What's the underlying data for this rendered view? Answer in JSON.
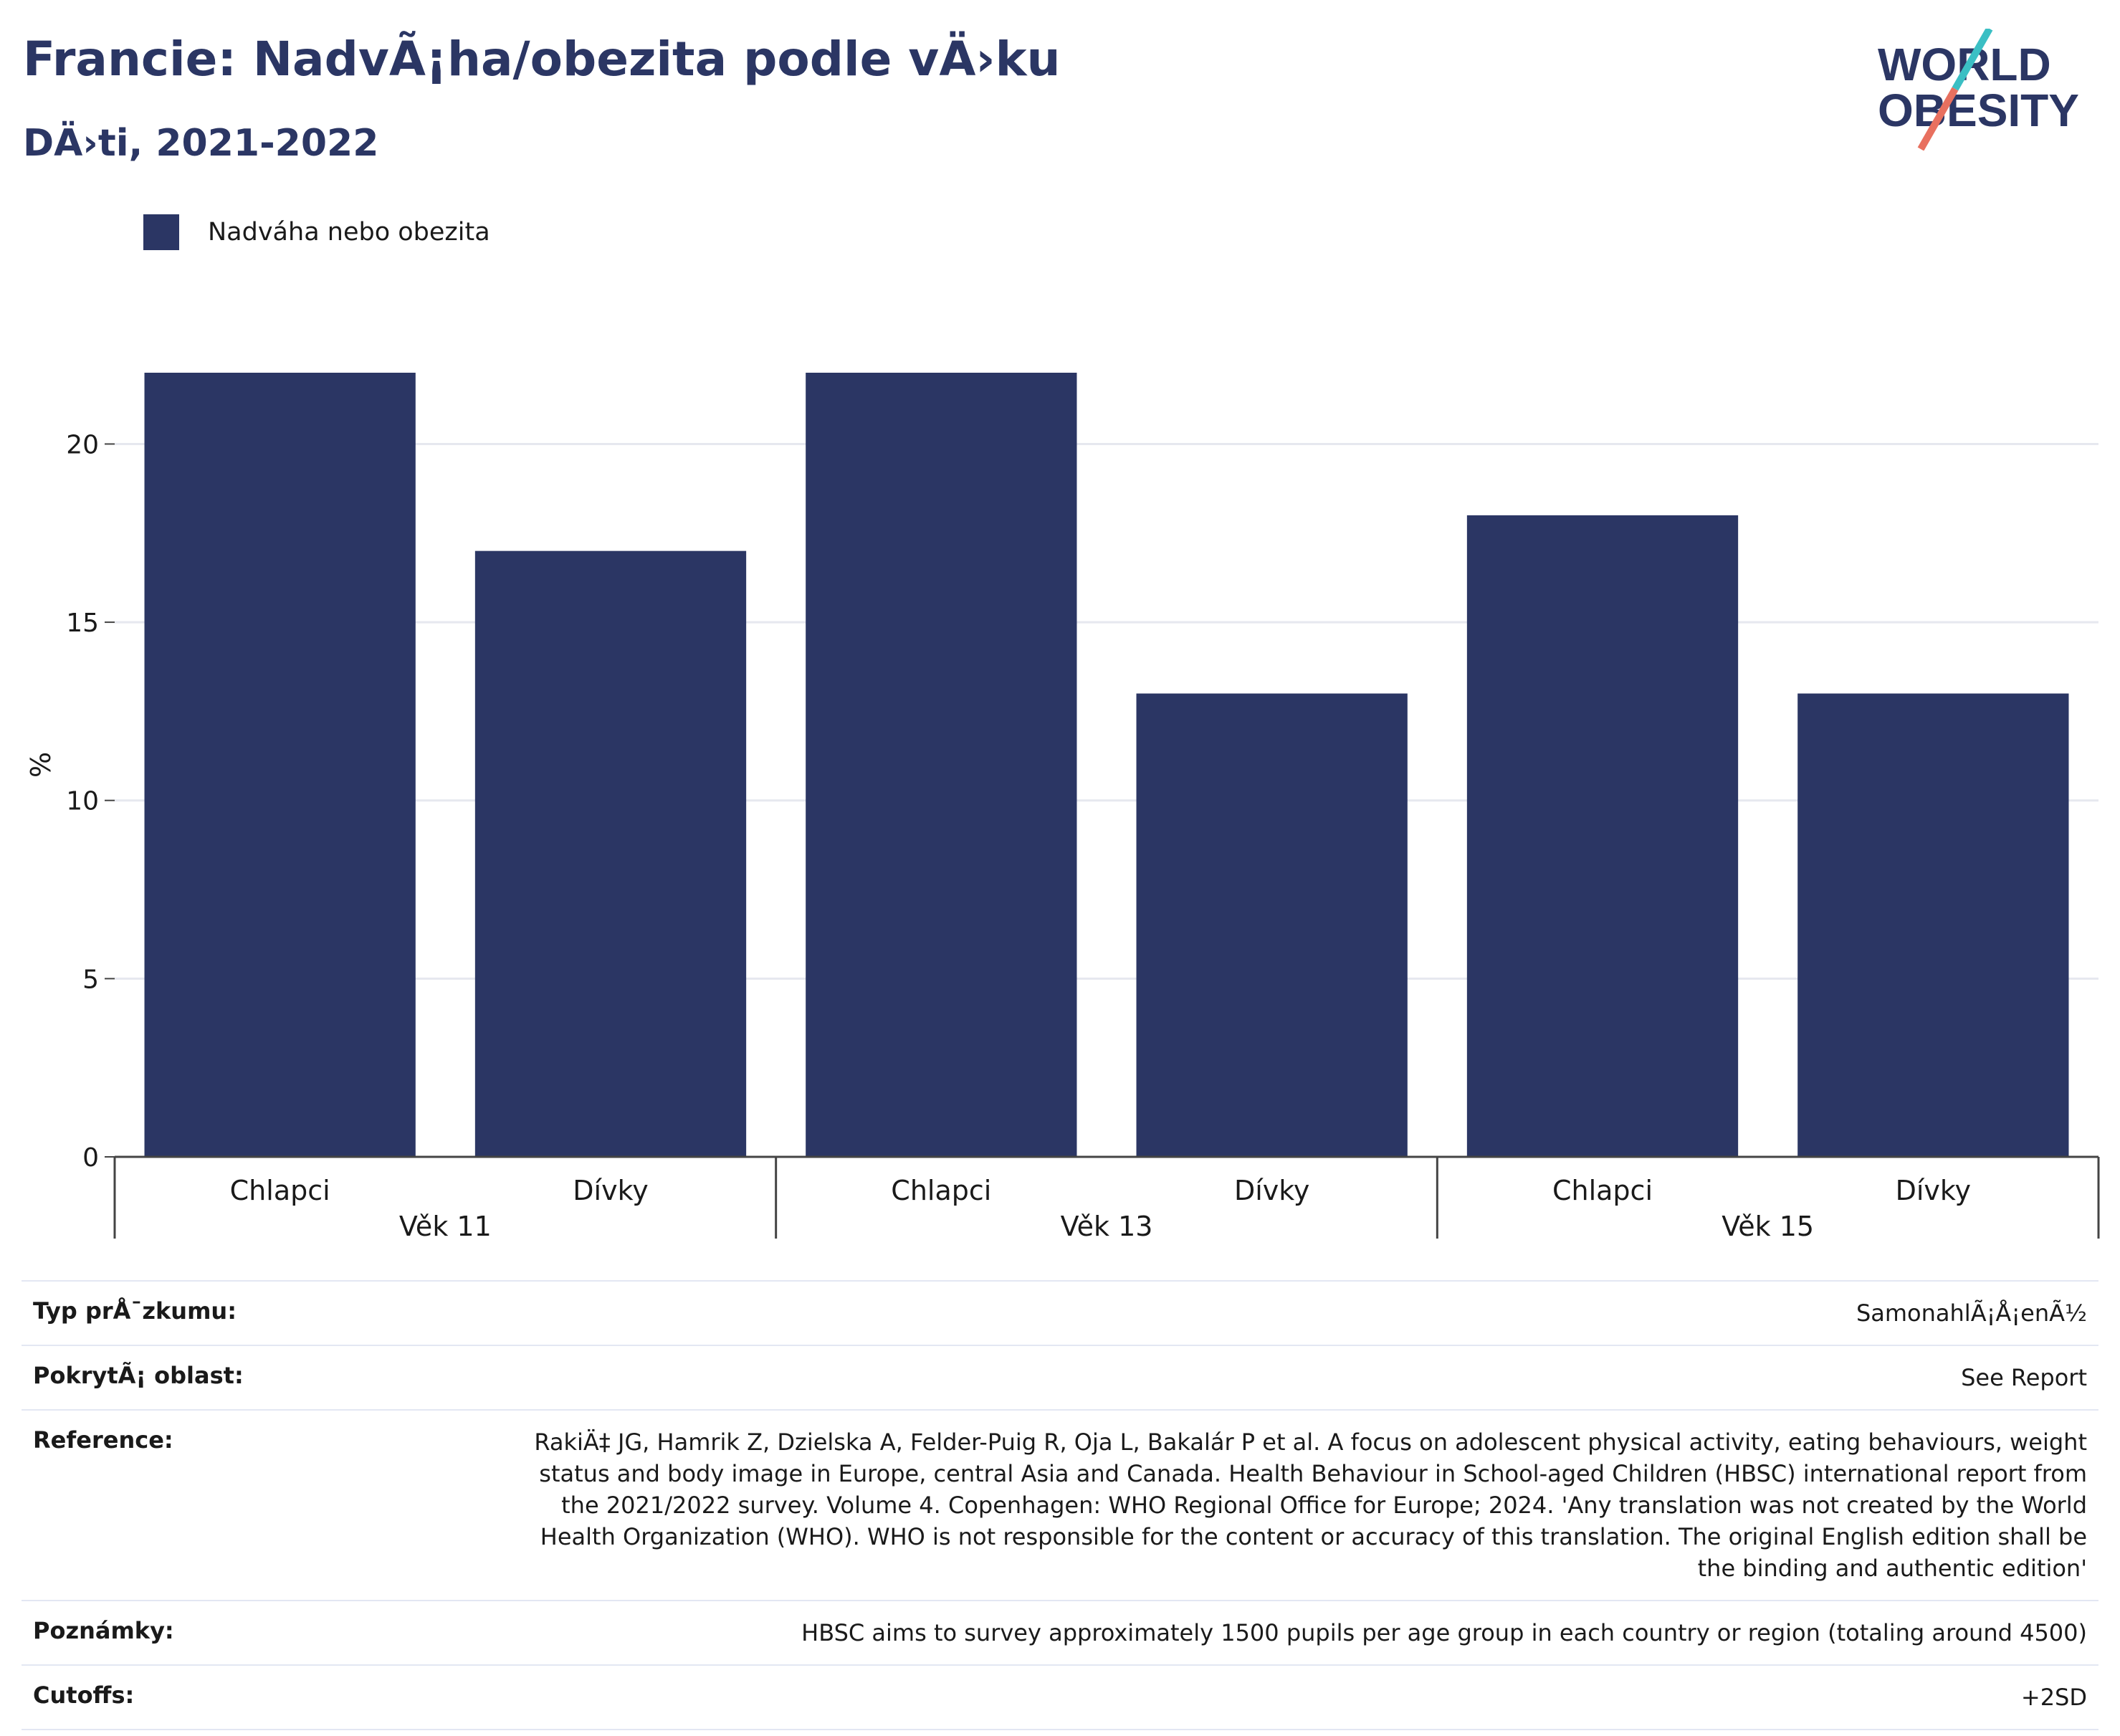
{
  "title": "Francie: NadvÃ¡ha/obezita podle vÄ›ku",
  "subtitle": "DÄ›ti, 2021-2022",
  "logo": {
    "line1": "WORLD",
    "line2": "OBESITY"
  },
  "colors": {
    "bar": "#2b3664",
    "title": "#2b3664",
    "grid": "#e6e8ef",
    "axis": "#444444",
    "logo_teal": "#3bbfc4",
    "logo_coral": "#e8705f"
  },
  "legend": {
    "label": "Nadváha nebo obezita"
  },
  "chart_data": {
    "type": "bar",
    "series": [
      {
        "name": "Nadváha nebo obezita",
        "values": [
          22,
          17,
          22,
          13,
          18,
          13
        ]
      }
    ],
    "categories": [
      "Chlapci",
      "Dívky",
      "Chlapci",
      "Dívky",
      "Chlapci",
      "Dívky"
    ],
    "groups": [
      {
        "label": "Věk 11",
        "categories": [
          "Chlapci",
          "Dívky"
        ]
      },
      {
        "label": "Věk 13",
        "categories": [
          "Chlapci",
          "Dívky"
        ]
      },
      {
        "label": "Věk 15",
        "categories": [
          "Chlapci",
          "Dívky"
        ]
      }
    ],
    "ylabel": "%",
    "ylim": [
      0,
      22
    ],
    "yticks": [
      0,
      5,
      10,
      15,
      20
    ],
    "grid": true
  },
  "info": [
    {
      "label": "Typ prÅ¯zkumu:",
      "value": "SamonahlÃ¡Å¡enÃ½"
    },
    {
      "label": "PokrytÃ¡ oblast:",
      "value": "See Report"
    },
    {
      "label": "Reference:",
      "value": "RakiÄ‡ JG, Hamrik Z, Dzielska A, Felder-Puig R, Oja L, Bakalár P et al. A focus on adolescent physical activity, eating behaviours, weight status and body image in Europe, central Asia and Canada. Health Behaviour in School-aged Children (HBSC) international report from the 2021/2022 survey. Volume 4. Copenhagen: WHO Regional Office for Europe; 2024. 'Any translation was not created by the World Health Organization (WHO). WHO is not responsible for the content or accuracy of this translation. The original English edition shall be the binding and authentic edition'"
    },
    {
      "label": "Poznámky:",
      "value": "HBSC aims to survey approximately 1500 pupils per age group in each country or region (totaling around 4500)"
    },
    {
      "label": "Cutoffs:",
      "value": "+2SD"
    }
  ]
}
